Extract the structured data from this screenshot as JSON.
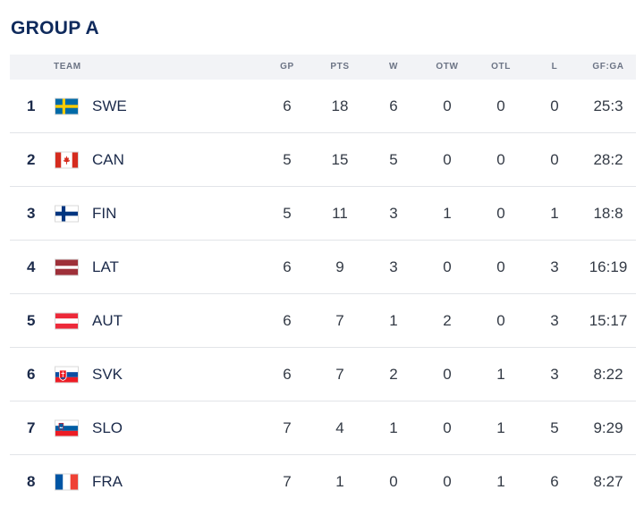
{
  "group": {
    "title": "GROUP A"
  },
  "columns": {
    "team": "TEAM",
    "gp": "GP",
    "pts": "PTS",
    "w": "W",
    "otw": "OTW",
    "otl": "OTL",
    "l": "L",
    "gfga": "GF:GA"
  },
  "rows": [
    {
      "rank": "1",
      "team": "SWE",
      "flag": "sweden-flag-icon",
      "gp": "6",
      "pts": "18",
      "w": "6",
      "otw": "0",
      "otl": "0",
      "l": "0",
      "gfga": "25:3"
    },
    {
      "rank": "2",
      "team": "CAN",
      "flag": "canada-flag-icon",
      "gp": "5",
      "pts": "15",
      "w": "5",
      "otw": "0",
      "otl": "0",
      "l": "0",
      "gfga": "28:2"
    },
    {
      "rank": "3",
      "team": "FIN",
      "flag": "finland-flag-icon",
      "gp": "5",
      "pts": "11",
      "w": "3",
      "otw": "1",
      "otl": "0",
      "l": "1",
      "gfga": "18:8"
    },
    {
      "rank": "4",
      "team": "LAT",
      "flag": "latvia-flag-icon",
      "gp": "6",
      "pts": "9",
      "w": "3",
      "otw": "0",
      "otl": "0",
      "l": "3",
      "gfga": "16:19"
    },
    {
      "rank": "5",
      "team": "AUT",
      "flag": "austria-flag-icon",
      "gp": "6",
      "pts": "7",
      "w": "1",
      "otw": "2",
      "otl": "0",
      "l": "3",
      "gfga": "15:17"
    },
    {
      "rank": "6",
      "team": "SVK",
      "flag": "slovakia-flag-icon",
      "gp": "6",
      "pts": "7",
      "w": "2",
      "otw": "0",
      "otl": "1",
      "l": "3",
      "gfga": "8:22"
    },
    {
      "rank": "7",
      "team": "SLO",
      "flag": "slovenia-flag-icon",
      "gp": "7",
      "pts": "4",
      "w": "1",
      "otw": "0",
      "otl": "1",
      "l": "5",
      "gfga": "9:29"
    },
    {
      "rank": "8",
      "team": "FRA",
      "flag": "france-flag-icon",
      "gp": "7",
      "pts": "1",
      "w": "0",
      "otw": "0",
      "otl": "1",
      "l": "6",
      "gfga": "8:27"
    }
  ]
}
